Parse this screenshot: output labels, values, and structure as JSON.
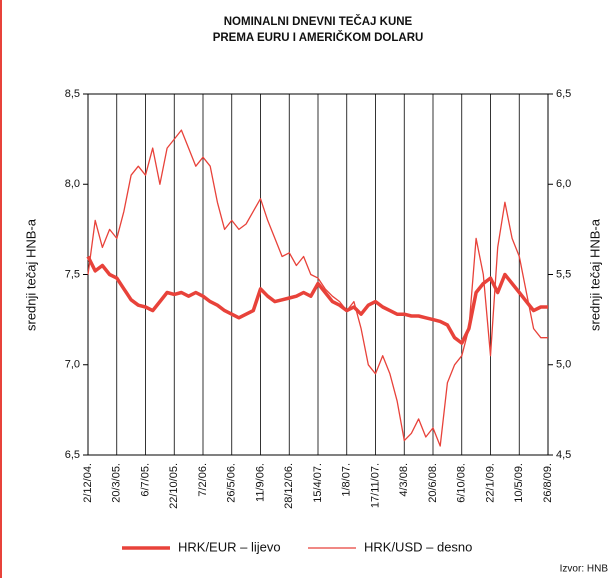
{
  "chart_data": {
    "type": "line",
    "title": [
      "NOMINALNI DNEVNI TEČAJ KUNE",
      "PREMA EURU I AMERIČKOM DOLARU"
    ],
    "ylabel": "srednji tečaj HNB-a",
    "y2label": "srednji tečaj HNB-a",
    "source": "Izvor: HNB",
    "legend": "bottom",
    "categories": [
      "2/12/04.",
      null,
      null,
      null,
      "20/3/05.",
      null,
      null,
      null,
      "6/7/05.",
      null,
      null,
      null,
      "22/10/05.",
      null,
      null,
      null,
      "7/2/06.",
      null,
      null,
      null,
      "26/5/06.",
      null,
      null,
      null,
      "11/9/06.",
      null,
      null,
      null,
      "28/12/06.",
      null,
      null,
      null,
      "15/4/07.",
      null,
      null,
      null,
      "1/8/07.",
      null,
      null,
      null,
      "17/11/07.",
      null,
      null,
      null,
      "4/3/08.",
      null,
      null,
      null,
      "20/6/08.",
      null,
      null,
      null,
      "6/10/08.",
      null,
      null,
      null,
      "22/1/09.",
      null,
      null,
      null,
      "10/5/09.",
      null,
      null,
      null,
      "26/8/09."
    ],
    "ylim": [
      6.5,
      8.5
    ],
    "yticks": [
      {
        "value": 6.5,
        "label": "6,5"
      },
      {
        "value": 7.0,
        "label": "7,0"
      },
      {
        "value": 7.5,
        "label": "7,5"
      },
      {
        "value": 8.0,
        "label": "8,0"
      },
      {
        "value": 8.5,
        "label": "8,5"
      }
    ],
    "y2lim": [
      4.5,
      6.5
    ],
    "y2ticks": [
      {
        "value": 4.5,
        "label": "4,5"
      },
      {
        "value": 5.0,
        "label": "5,0"
      },
      {
        "value": 5.5,
        "label": "5,5"
      },
      {
        "value": 6.0,
        "label": "6,0"
      },
      {
        "value": 6.5,
        "label": "6,5"
      }
    ],
    "series": [
      {
        "name": "HRK/EUR – lijevo",
        "color": "#e8423a",
        "width": 3.5,
        "values": [
          7.6,
          7.52,
          7.55,
          7.5,
          7.48,
          7.42,
          7.36,
          7.33,
          7.32,
          7.3,
          7.35,
          7.4,
          7.39,
          7.4,
          7.38,
          7.4,
          7.38,
          7.35,
          7.33,
          7.3,
          7.28,
          7.26,
          7.28,
          7.3,
          7.42,
          7.38,
          7.35,
          7.36,
          7.37,
          7.38,
          7.4,
          7.38,
          7.45,
          7.4,
          7.35,
          7.33,
          7.3,
          7.32,
          7.28,
          7.33,
          7.35,
          7.32,
          7.3,
          7.28,
          7.28,
          7.27,
          7.27,
          7.26,
          7.25,
          7.24,
          7.22,
          7.15,
          7.12,
          7.2,
          7.4,
          7.45,
          7.48,
          7.4,
          7.5,
          7.45,
          7.4,
          7.35,
          7.3,
          7.32,
          7.32
        ]
      },
      {
        "name": "HRK/USD – desno",
        "color": "#e8423a",
        "width": 1.3,
        "axis": "y2",
        "values": [
          5.5,
          5.8,
          5.65,
          5.75,
          5.7,
          5.85,
          6.05,
          6.1,
          6.05,
          6.2,
          6.0,
          6.2,
          6.25,
          6.3,
          6.2,
          6.1,
          6.15,
          6.1,
          5.9,
          5.75,
          5.8,
          5.75,
          5.78,
          5.85,
          5.92,
          5.8,
          5.7,
          5.6,
          5.62,
          5.55,
          5.6,
          5.5,
          5.48,
          5.42,
          5.38,
          5.35,
          5.3,
          5.35,
          5.2,
          5.0,
          4.95,
          5.05,
          4.95,
          4.8,
          4.58,
          4.62,
          4.7,
          4.6,
          4.65,
          4.55,
          4.9,
          5.0,
          5.05,
          5.2,
          5.7,
          5.5,
          5.05,
          5.65,
          5.9,
          5.7,
          5.6,
          5.4,
          5.2,
          5.15,
          5.15
        ]
      }
    ]
  }
}
